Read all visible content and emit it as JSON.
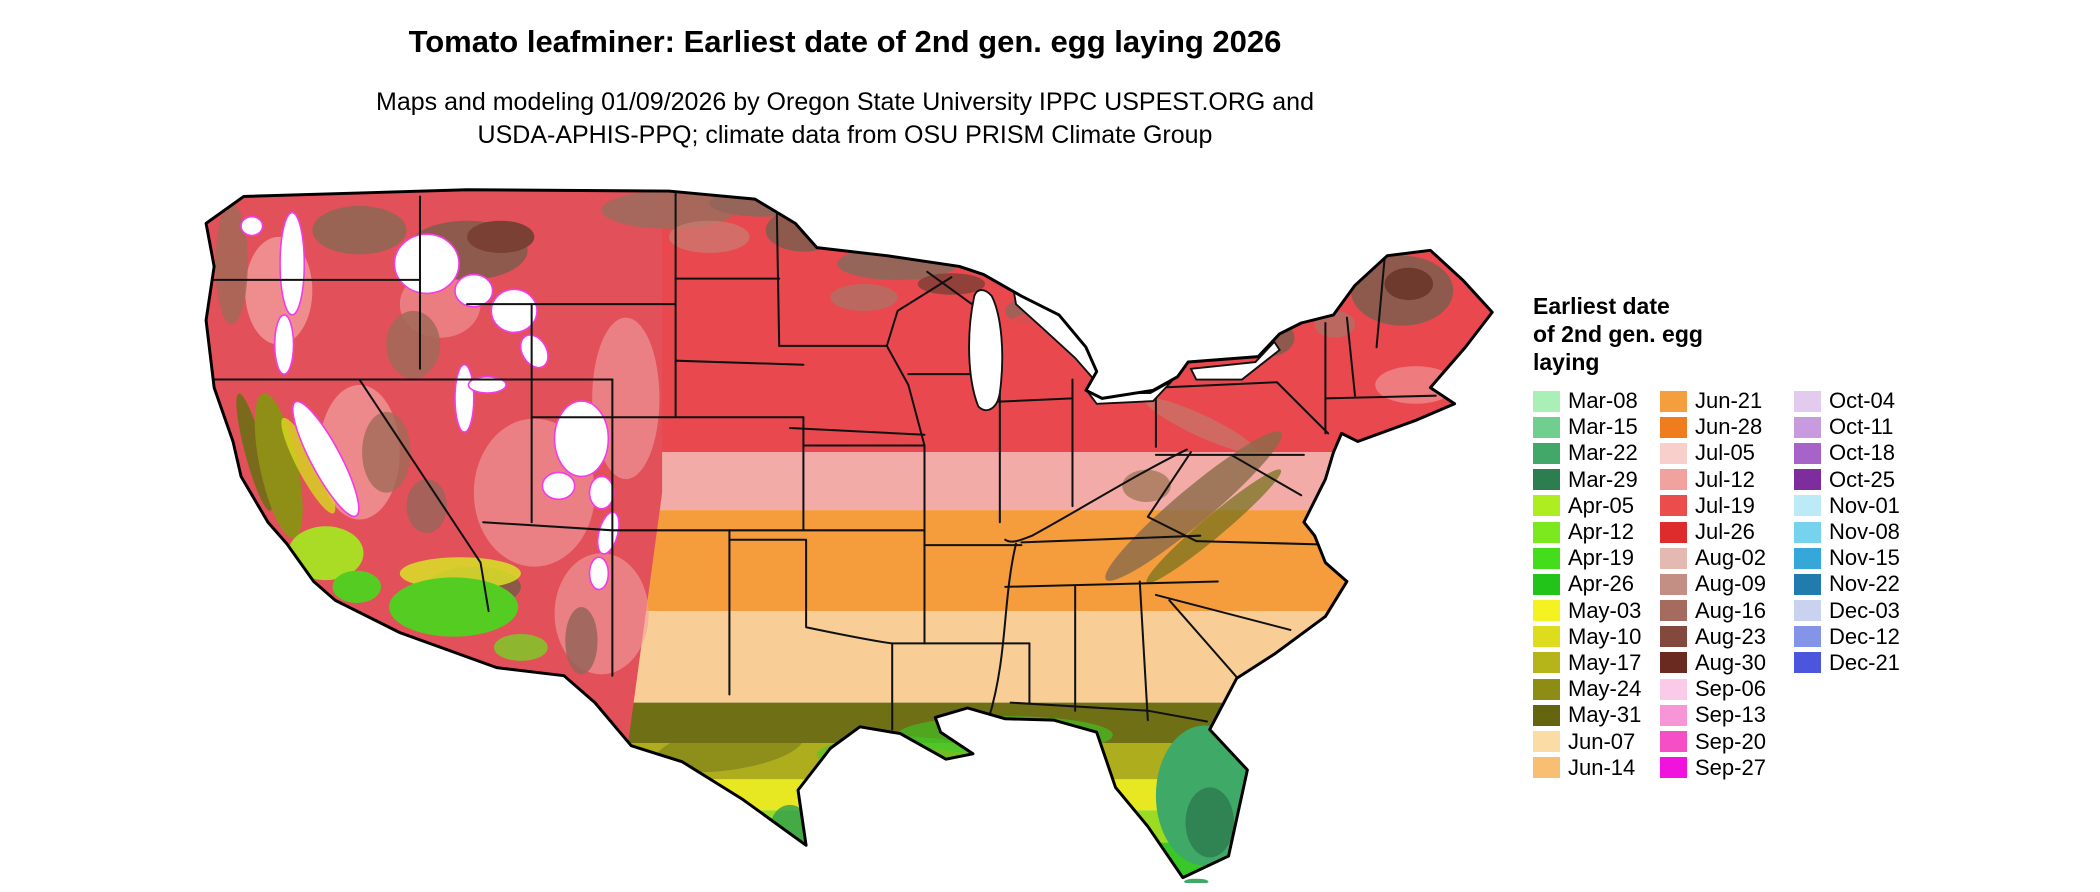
{
  "title": "Tomato leafminer: Earliest date of 2nd gen. egg laying 2026",
  "subtitle_line1": "Maps and modeling 01/09/2026 by Oregon State University IPPC USPEST.ORG and",
  "subtitle_line2": "USDA-APHIS-PPQ; climate data from OSU PRISM Climate Group",
  "legend": {
    "title_lines": [
      "Earliest date",
      "of 2nd gen. egg",
      "laying"
    ],
    "columns": [
      {
        "entries": [
          {
            "label": "Mar-08",
            "color": "#A9EFB6"
          },
          {
            "label": "Mar-15",
            "color": "#70CE8E"
          },
          {
            "label": "Mar-22",
            "color": "#41A86A"
          },
          {
            "label": "Mar-29",
            "color": "#2C7D4F"
          },
          {
            "label": "Apr-05",
            "color": "#AEEE21"
          },
          {
            "label": "Apr-12",
            "color": "#7CE81E"
          },
          {
            "label": "Apr-19",
            "color": "#44DD1C"
          },
          {
            "label": "Apr-26",
            "color": "#23C41A"
          },
          {
            "label": "May-03",
            "color": "#F4F321"
          },
          {
            "label": "May-10",
            "color": "#DDDD1D"
          },
          {
            "label": "May-17",
            "color": "#B5B51A"
          },
          {
            "label": "May-24",
            "color": "#8D8D15"
          },
          {
            "label": "May-31",
            "color": "#65650F"
          },
          {
            "label": "Jun-07",
            "color": "#FADCA4"
          },
          {
            "label": "Jun-14",
            "color": "#F8BE71"
          }
        ]
      },
      {
        "entries": [
          {
            "label": "Jun-21",
            "color": "#F59E3D"
          },
          {
            "label": "Jun-28",
            "color": "#F07D1D"
          },
          {
            "label": "Jul-05",
            "color": "#F8CFCB"
          },
          {
            "label": "Jul-12",
            "color": "#F2A29E"
          },
          {
            "label": "Jul-19",
            "color": "#EB4D4D"
          },
          {
            "label": "Jul-26",
            "color": "#DE2B2B"
          },
          {
            "label": "Aug-02",
            "color": "#E3B9B2"
          },
          {
            "label": "Aug-09",
            "color": "#C38F85"
          },
          {
            "label": "Aug-16",
            "color": "#A56B5E"
          },
          {
            "label": "Aug-23",
            "color": "#84493D"
          },
          {
            "label": "Aug-30",
            "color": "#6B2A1F"
          },
          {
            "label": "Sep-06",
            "color": "#FACAE9"
          },
          {
            "label": "Sep-13",
            "color": "#F795D6"
          },
          {
            "label": "Sep-20",
            "color": "#F44FC4"
          },
          {
            "label": "Sep-27",
            "color": "#F112DD"
          }
        ]
      },
      {
        "entries": [
          {
            "label": "Oct-04",
            "color": "#E3CBEF"
          },
          {
            "label": "Oct-11",
            "color": "#C89BDF"
          },
          {
            "label": "Oct-18",
            "color": "#A863C9"
          },
          {
            "label": "Oct-25",
            "color": "#7F2D9E"
          },
          {
            "label": "Nov-01",
            "color": "#BCEAF6"
          },
          {
            "label": "Nov-08",
            "color": "#77D2EE"
          },
          {
            "label": "Nov-15",
            "color": "#35A8D9"
          },
          {
            "label": "Nov-22",
            "color": "#1F7CAD"
          },
          {
            "label": "Dec-03",
            "color": "#C9D3F0"
          },
          {
            "label": "Dec-12",
            "color": "#8395E6"
          },
          {
            "label": "Dec-21",
            "color": "#4A57DD"
          }
        ]
      }
    ]
  }
}
